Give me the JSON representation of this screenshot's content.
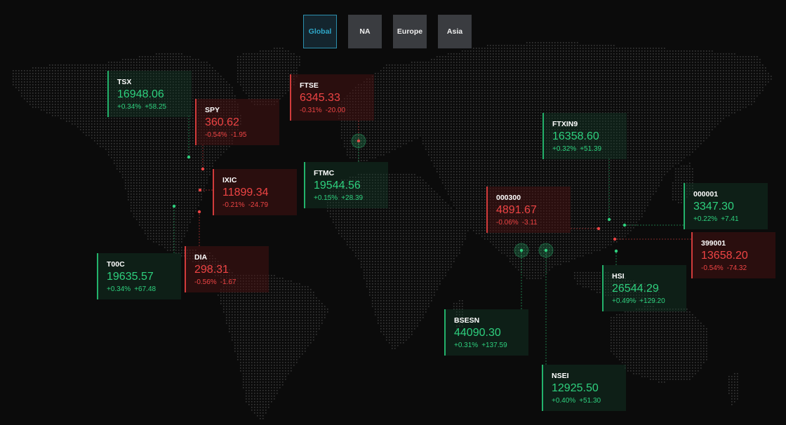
{
  "tabs": [
    {
      "label": "Global",
      "active": true
    },
    {
      "label": "NA",
      "active": false
    },
    {
      "label": "Europe",
      "active": false
    },
    {
      "label": "Asia",
      "active": false
    }
  ],
  "colors": {
    "up": "#2ed07e",
    "down": "#ee4444",
    "active_tab": "#2fa8c9",
    "tab_bg": "#3a3c40",
    "map_dot": "#3a3a3a"
  },
  "indices": [
    {
      "id": "tsx",
      "symbol": "TSX",
      "price": "16948.06",
      "pct": "+0.34%",
      "chg": "+58.25",
      "direction": "up"
    },
    {
      "id": "spy",
      "symbol": "SPY",
      "price": "360.62",
      "pct": "-0.54%",
      "chg": "-1.95",
      "direction": "down"
    },
    {
      "id": "ixic",
      "symbol": "IXIC",
      "price": "11899.34",
      "pct": "-0.21%",
      "chg": "-24.79",
      "direction": "down"
    },
    {
      "id": "t00c",
      "symbol": "T00C",
      "price": "19635.57",
      "pct": "+0.34%",
      "chg": "+67.48",
      "direction": "up"
    },
    {
      "id": "dia",
      "symbol": "DIA",
      "price": "298.31",
      "pct": "-0.56%",
      "chg": "-1.67",
      "direction": "down"
    },
    {
      "id": "ftse",
      "symbol": "FTSE",
      "price": "6345.33",
      "pct": "-0.31%",
      "chg": "-20.00",
      "direction": "down"
    },
    {
      "id": "ftmc",
      "symbol": "FTMC",
      "price": "19544.56",
      "pct": "+0.15%",
      "chg": "+28.39",
      "direction": "up"
    },
    {
      "id": "ftxin9",
      "symbol": "FTXIN9",
      "price": "16358.60",
      "pct": "+0.32%",
      "chg": "+51.39",
      "direction": "up"
    },
    {
      "id": "000300",
      "symbol": "000300",
      "price": "4891.67",
      "pct": "-0.06%",
      "chg": "-3.11",
      "direction": "down"
    },
    {
      "id": "000001",
      "symbol": "000001",
      "price": "3347.30",
      "pct": "+0.22%",
      "chg": "+7.41",
      "direction": "up"
    },
    {
      "id": "399001",
      "symbol": "399001",
      "price": "13658.20",
      "pct": "-0.54%",
      "chg": "-74.32",
      "direction": "down"
    },
    {
      "id": "hsi",
      "symbol": "HSI",
      "price": "26544.29",
      "pct": "+0.49%",
      "chg": "+129.20",
      "direction": "up"
    },
    {
      "id": "bsesn",
      "symbol": "BSESN",
      "price": "44090.30",
      "pct": "+0.31%",
      "chg": "+137.59",
      "direction": "up"
    },
    {
      "id": "nsei",
      "symbol": "NSEI",
      "price": "12925.50",
      "pct": "+0.40%",
      "chg": "+51.30",
      "direction": "up"
    }
  ]
}
